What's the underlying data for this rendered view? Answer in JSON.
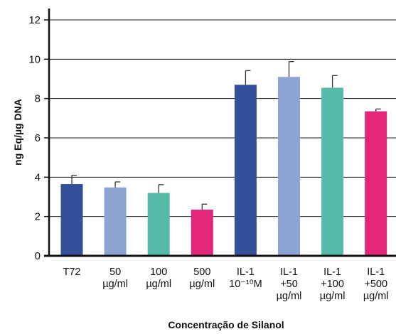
{
  "chart_data": {
    "type": "bar",
    "title": "",
    "xlabel": "Concentração de Silanol",
    "ylabel": "ng Eq/µg DNA",
    "ylim": [
      0,
      12
    ],
    "yticks": [
      "0",
      "2",
      "4",
      "6",
      "8",
      "10",
      "12"
    ],
    "grid": true,
    "categories": [
      [
        "T72"
      ],
      [
        "50",
        "µg/ml"
      ],
      [
        "100",
        "µg/ml"
      ],
      [
        "500",
        "µg/ml"
      ],
      [
        "IL-1",
        "10⁻¹⁰M"
      ],
      [
        "IL-1",
        "+50",
        "µg/ml"
      ],
      [
        "IL-1",
        "+100",
        "µg/ml"
      ],
      [
        "IL-1",
        "+500",
        "µg/ml"
      ]
    ],
    "values": [
      3.65,
      3.48,
      3.2,
      2.35,
      8.7,
      9.1,
      8.55,
      7.35
    ],
    "errors": [
      0.45,
      0.28,
      0.42,
      0.28,
      0.72,
      0.78,
      0.62,
      0.12
    ],
    "colors": [
      "#35509b",
      "#8da3d2",
      "#55bba8",
      "#e2267a",
      "#35509b",
      "#8da3d2",
      "#55bba8",
      "#e2267a"
    ]
  }
}
